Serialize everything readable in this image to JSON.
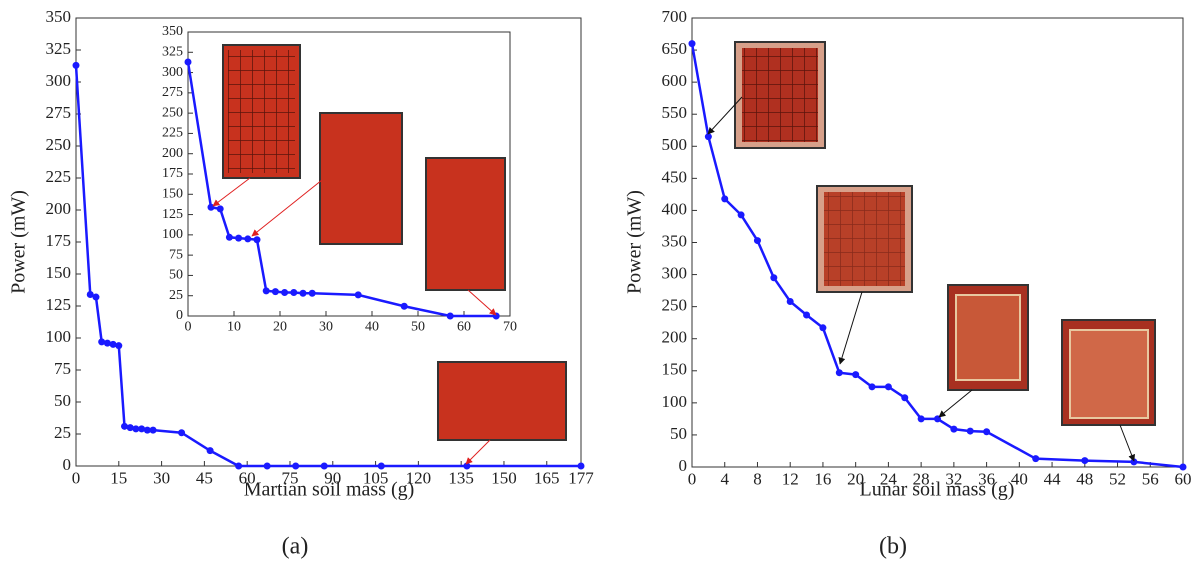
{
  "chart_data": [
    {
      "type": "line",
      "xlabel": "Martian soil mass (g)",
      "ylabel": "Power (mW)",
      "x": [
        0,
        5,
        7,
        9,
        11,
        13,
        15,
        17,
        19,
        21,
        23,
        25,
        27,
        37,
        47,
        57,
        67,
        77,
        87,
        107,
        137,
        177
      ],
      "series": [
        {
          "color": "#1a1aff",
          "values": [
            313,
            134,
            132,
            97,
            96,
            95,
            94,
            31,
            30,
            29,
            29,
            28,
            28,
            26,
            12,
            0,
            0,
            0,
            0,
            0,
            0,
            0
          ]
        }
      ],
      "xlim": [
        0,
        177
      ],
      "xticks": [
        0,
        15,
        30,
        45,
        60,
        75,
        90,
        105,
        120,
        135,
        150,
        165,
        177
      ],
      "ylim": [
        0,
        350
      ],
      "yticks": [
        0,
        25,
        50,
        75,
        100,
        125,
        150,
        175,
        200,
        225,
        250,
        275,
        300,
        325,
        350
      ],
      "grid": false
    },
    {
      "type": "line",
      "x": [
        0,
        5,
        7,
        9,
        11,
        13,
        15,
        17,
        19,
        21,
        23,
        25,
        27,
        37,
        47,
        57,
        67
      ],
      "series": [
        {
          "color": "#1a1aff",
          "values": [
            313,
            134,
            132,
            97,
            96,
            95,
            94,
            31,
            30,
            29,
            29,
            28,
            28,
            26,
            12,
            0,
            0
          ]
        }
      ],
      "xlim": [
        0,
        70
      ],
      "xticks": [
        0,
        10,
        20,
        30,
        40,
        50,
        60,
        70
      ],
      "ylim": [
        0,
        350
      ],
      "yticks": [
        0,
        25,
        50,
        75,
        100,
        125,
        150,
        175,
        200,
        225,
        250,
        275,
        300,
        325,
        350
      ],
      "grid": false
    },
    {
      "type": "line",
      "xlabel": "Lunar soil mass (g)",
      "ylabel": "Power (mW)",
      "x": [
        0,
        2,
        4,
        6,
        8,
        10,
        12,
        14,
        16,
        18,
        20,
        22,
        24,
        26,
        28,
        30,
        32,
        34,
        36,
        42,
        48,
        54,
        60
      ],
      "series": [
        {
          "color": "#1a1aff",
          "values": [
            660,
            515,
            418,
            393,
            353,
            295,
            258,
            237,
            217,
            147,
            144,
            125,
            125,
            108,
            75,
            75,
            59,
            56,
            55,
            13,
            10,
            8,
            0
          ]
        }
      ],
      "xlim": [
        0,
        60
      ],
      "xticks": [
        0,
        4,
        8,
        12,
        16,
        20,
        24,
        28,
        32,
        36,
        40,
        44,
        48,
        52,
        56,
        60
      ],
      "ylim": [
        0,
        700
      ],
      "yticks": [
        0,
        50,
        100,
        150,
        200,
        250,
        300,
        350,
        400,
        450,
        500,
        550,
        600,
        650,
        700
      ],
      "grid": false
    }
  ],
  "captions": [
    "(a)",
    "(b)"
  ]
}
